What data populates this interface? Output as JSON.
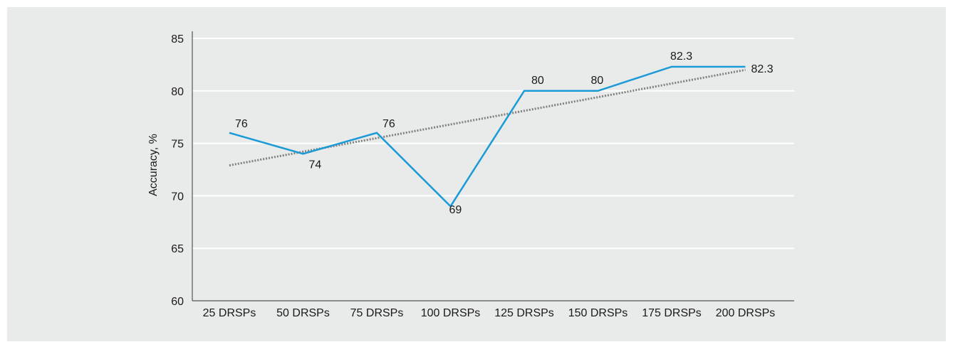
{
  "chart_data": {
    "type": "line",
    "title": "",
    "xlabel": "",
    "ylabel": "Accuracy, %",
    "categories": [
      "25 DRSPs",
      "50 DRSPs",
      "75 DRSPs",
      "100 DRSPs",
      "125 DRSPs",
      "150 DRSPs",
      "175 DRSPs",
      "200 DRSPs"
    ],
    "series": [
      {
        "values": [
          76,
          74,
          76,
          69,
          80,
          80,
          82.3,
          82.3
        ],
        "color": "#1a9ad6"
      }
    ],
    "trendline": {
      "style": "dotted",
      "color": "#808080",
      "start": 72.9,
      "end": 82.0
    },
    "data_labels": [
      "76",
      "74",
      "76",
      "69",
      "80",
      "80",
      "82.3",
      "82.3"
    ],
    "y_ticks": [
      "60",
      "65",
      "70",
      "75",
      "80",
      "85"
    ],
    "ylim": [
      60,
      85
    ],
    "grid": true,
    "background": "#e9eaea"
  }
}
